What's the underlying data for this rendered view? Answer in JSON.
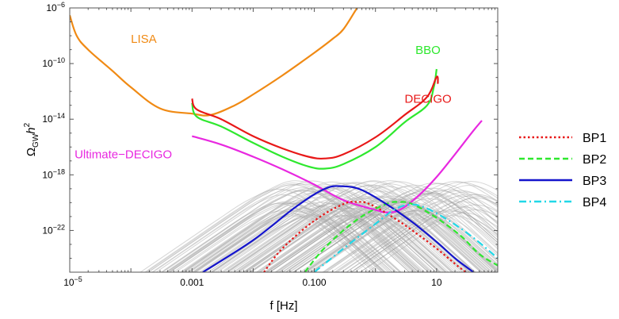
{
  "chart_data": {
    "type": "line",
    "x_scale": "log",
    "y_scale": "log",
    "xlim": [
      1e-05,
      100
    ],
    "ylim": [
      1e-25,
      1e-06
    ],
    "xlabel": "f [Hz]",
    "ylabel": {
      "base": "Ω",
      "sub": "GW",
      "var": "h",
      "sup": "2"
    },
    "grid": false,
    "legend_position": "right",
    "x_ticks": [
      {
        "value": 1e-05,
        "base": "10",
        "exp": "−5"
      },
      {
        "value": 0.001,
        "label": "0.001"
      },
      {
        "value": 0.1,
        "label": "0.100"
      },
      {
        "value": 10,
        "label": "10"
      }
    ],
    "y_ticks": [
      {
        "value": 1e-06,
        "base": "10",
        "exp": "−6"
      },
      {
        "value": 1e-10,
        "base": "10",
        "exp": "−10"
      },
      {
        "value": 1e-14,
        "base": "10",
        "exp": "−14"
      },
      {
        "value": 1e-18,
        "base": "10",
        "exp": "−18"
      },
      {
        "value": 1e-22,
        "base": "10",
        "exp": "−22"
      }
    ],
    "sensitivity_curves": [
      {
        "name": "LISA",
        "color": "#f08a14",
        "points": [
          [
            1e-05,
            3e-07
          ],
          [
            1.3e-05,
            1e-08
          ],
          [
            2e-05,
            1e-09
          ],
          [
            5e-05,
            3e-11
          ],
          [
            0.0001,
            2e-12
          ],
          [
            0.0003,
            6e-14
          ],
          [
            0.001,
            2.5e-14
          ],
          [
            0.002,
            2e-14
          ],
          [
            0.005,
            1e-13
          ],
          [
            0.01,
            6e-13
          ],
          [
            0.03,
            1.4e-11
          ],
          [
            0.1,
            6e-10
          ],
          [
            0.2,
            6e-09
          ],
          [
            0.3,
            3e-08
          ],
          [
            0.5,
            1e-06
          ]
        ]
      },
      {
        "name": "BBO",
        "color": "#2ee82e",
        "points": [
          [
            0.001,
            1.5e-13
          ],
          [
            0.0012,
            1.5e-14
          ],
          [
            0.003,
            3e-15
          ],
          [
            0.01,
            2e-16
          ],
          [
            0.03,
            2e-17
          ],
          [
            0.08,
            4e-18
          ],
          [
            0.15,
            2.8e-18
          ],
          [
            0.3,
            6e-18
          ],
          [
            1,
            1e-16
          ],
          [
            3,
            6e-15
          ],
          [
            7,
            1e-13
          ],
          [
            9,
            2e-12
          ],
          [
            10,
            4e-11
          ]
        ]
      },
      {
        "name": "DECIGO",
        "color": "#e81818",
        "points": [
          [
            0.001,
            3e-13
          ],
          [
            0.0012,
            5e-14
          ],
          [
            0.003,
            1e-14
          ],
          [
            0.01,
            6e-16
          ],
          [
            0.03,
            8e-17
          ],
          [
            0.08,
            2e-17
          ],
          [
            0.15,
            1.5e-17
          ],
          [
            0.3,
            3e-17
          ],
          [
            1,
            5e-16
          ],
          [
            3,
            2e-14
          ],
          [
            7,
            4e-13
          ],
          [
            10,
            1.1e-11
          ],
          [
            10.5,
            3.5e-12
          ]
        ]
      },
      {
        "name": "Ultimate−DECIGO",
        "color": "#e828e0",
        "points": [
          [
            0.001,
            6e-16
          ],
          [
            0.003,
            1.5e-16
          ],
          [
            0.01,
            2e-17
          ],
          [
            0.03,
            2.5e-18
          ],
          [
            0.1,
            2e-19
          ],
          [
            0.3,
            1.5e-20
          ],
          [
            1,
            3e-21
          ],
          [
            1.5,
            2e-21
          ],
          [
            2.5,
            3e-21
          ],
          [
            5,
            3e-20
          ],
          [
            10,
            7e-19
          ],
          [
            20,
            3e-17
          ],
          [
            40,
            1.5e-15
          ],
          [
            55,
            8e-15
          ]
        ]
      }
    ],
    "series": [
      {
        "name": "BP1",
        "color": "#e81818",
        "dash": "dotted",
        "points": [
          [
            0.015,
            1e-25
          ],
          [
            0.03,
            5e-24
          ],
          [
            0.1,
            5e-22
          ],
          [
            0.3,
            8e-21
          ],
          [
            0.5,
            1.1e-20
          ],
          [
            0.8,
            8e-21
          ],
          [
            2,
            8e-22
          ],
          [
            5,
            5e-23
          ],
          [
            10,
            5e-24
          ],
          [
            20,
            4e-25
          ],
          [
            30,
            1e-25
          ]
        ]
      },
      {
        "name": "BP2",
        "color": "#2ee82e",
        "dash": "dashed",
        "points": [
          [
            0.07,
            1e-25
          ],
          [
            0.15,
            6e-24
          ],
          [
            0.5,
            6e-22
          ],
          [
            1.5,
            8e-21
          ],
          [
            2.5,
            1.1e-20
          ],
          [
            4,
            8e-21
          ],
          [
            10,
            8e-22
          ],
          [
            25,
            4e-23
          ],
          [
            50,
            2e-24
          ],
          [
            100,
            3e-25
          ]
        ]
      },
      {
        "name": "BP3",
        "color": "#1414cc",
        "dash": "solid",
        "points": [
          [
            0.0015,
            1e-25
          ],
          [
            0.01,
            2e-23
          ],
          [
            0.05,
            5e-21
          ],
          [
            0.15,
            1e-19
          ],
          [
            0.3,
            1.5e-19
          ],
          [
            0.6,
            8e-20
          ],
          [
            1.5,
            8e-21
          ],
          [
            4,
            4e-22
          ],
          [
            10,
            1.5e-23
          ],
          [
            20,
            1e-24
          ],
          [
            40,
            1e-25
          ]
        ]
      },
      {
        "name": "BP4",
        "color": "#22d8e8",
        "dash": "dashdot",
        "points": [
          [
            0.1,
            1e-25
          ],
          [
            0.3,
            5e-24
          ],
          [
            1,
            3e-22
          ],
          [
            2,
            3e-21
          ],
          [
            3.5,
            7e-21
          ],
          [
            6,
            5e-21
          ],
          [
            15,
            6e-22
          ],
          [
            40,
            3e-23
          ],
          [
            100,
            1e-24
          ]
        ]
      }
    ],
    "scan_points": {
      "color": "#bdbdbd",
      "dark_color": "#888888",
      "count": 150
    },
    "labels": [
      {
        "text": "LISA",
        "series": "LISA",
        "at": [
          0.0001,
          3e-09
        ]
      },
      {
        "text": "BBO",
        "series": "BBO",
        "at": [
          4.5,
          5e-10
        ]
      },
      {
        "text": "DECIGO",
        "series": "DECIGO",
        "at": [
          3,
          1.5e-13
        ]
      },
      {
        "text": "Ultimate−DECIGO",
        "series": "Ultimate−DECIGO",
        "at": [
          1.2e-05,
          1.5e-17
        ]
      }
    ]
  }
}
